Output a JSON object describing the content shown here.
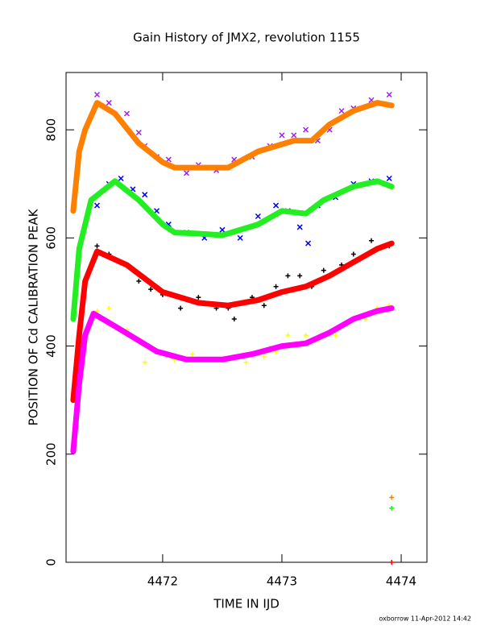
{
  "chart_data": {
    "type": "line",
    "title": "Gain History of JMX2, revolution 1155",
    "xlabel": "TIME IN IJD",
    "ylabel": "POSITION OF Cd CALIBRATION PEAK",
    "footer": "oxborrow 11-Apr-2012 14:42",
    "xlim": [
      4471.19,
      4474.216
    ],
    "ylim": [
      0,
      906
    ],
    "xticks": [
      4472,
      4473,
      4474
    ],
    "yticks": [
      0,
      200,
      400,
      600,
      800
    ],
    "series": [
      {
        "color": "#a020f0",
        "marker": "x",
        "x": [
          4471.45,
          4471.55,
          4471.7,
          4471.8,
          4471.85,
          4471.95,
          4472.05,
          4472.2,
          4472.3,
          4472.45,
          4472.6,
          4472.75,
          4472.9,
          4473.0,
          4473.1,
          4473.2,
          4473.3,
          4473.4,
          4473.5,
          4473.6,
          4473.75,
          4473.9
        ],
        "values": [
          865,
          850,
          830,
          795,
          770,
          750,
          745,
          720,
          735,
          725,
          745,
          750,
          770,
          790,
          790,
          800,
          780,
          800,
          835,
          840,
          855,
          865
        ]
      },
      {
        "color": "#0000ff",
        "marker": "x",
        "x": [
          4471.45,
          4471.55,
          4471.65,
          4471.75,
          4471.85,
          4471.95,
          4472.05,
          4472.2,
          4472.35,
          4472.5,
          4472.65,
          4472.8,
          4472.95,
          4473.05,
          4473.15,
          4473.22,
          4473.3,
          4473.45,
          4473.6,
          4473.75,
          4473.9
        ],
        "values": [
          660,
          700,
          710,
          690,
          680,
          650,
          625,
          610,
          600,
          615,
          600,
          640,
          660,
          650,
          620,
          590,
          660,
          675,
          700,
          705,
          710
        ]
      },
      {
        "color": "#000000",
        "marker": "+",
        "x": [
          4471.45,
          4471.55,
          4471.7,
          4471.8,
          4471.9,
          4472.0,
          4472.15,
          4472.3,
          4472.45,
          4472.55,
          4472.6,
          4472.75,
          4472.85,
          4472.95,
          4473.05,
          4473.15,
          4473.25,
          4473.35,
          4473.5,
          4473.6,
          4473.75,
          4473.9
        ],
        "values": [
          585,
          570,
          550,
          520,
          505,
          495,
          470,
          490,
          470,
          470,
          450,
          490,
          475,
          510,
          530,
          530,
          510,
          540,
          550,
          570,
          595,
          585
        ]
      },
      {
        "color": "#ffff00",
        "marker": "+",
        "x": [
          4471.45,
          4471.55,
          4471.7,
          4471.85,
          4471.95,
          4472.1,
          4472.25,
          4472.45,
          4472.6,
          4472.7,
          4472.85,
          4472.95,
          4473.05,
          4473.2,
          4473.3,
          4473.45,
          4473.55,
          4473.7,
          4473.8,
          4473.9
        ],
        "values": [
          465,
          470,
          430,
          370,
          390,
          375,
          385,
          375,
          380,
          370,
          380,
          390,
          420,
          420,
          410,
          420,
          440,
          450,
          470,
          475
        ]
      },
      {
        "color": "#ff8000",
        "marker": "line",
        "x": [
          4471.25,
          4471.3,
          4471.35,
          4471.45,
          4471.6,
          4471.8,
          4472.0,
          4472.1,
          4472.3,
          4472.55,
          4472.8,
          4473.1,
          4473.25,
          4473.4,
          4473.6,
          4473.8,
          4473.92
        ],
        "values": [
          650,
          760,
          800,
          850,
          830,
          775,
          740,
          730,
          730,
          730,
          760,
          780,
          780,
          810,
          835,
          850,
          845
        ]
      },
      {
        "color": "#22ee22",
        "marker": "line",
        "x": [
          4471.25,
          4471.3,
          4471.4,
          4471.6,
          4471.8,
          4472.0,
          4472.1,
          4472.3,
          4472.5,
          4472.8,
          4473.0,
          4473.2,
          4473.35,
          4473.6,
          4473.8,
          4473.92
        ],
        "values": [
          450,
          580,
          670,
          705,
          670,
          625,
          610,
          608,
          605,
          625,
          650,
          645,
          670,
          695,
          705,
          695
        ]
      },
      {
        "color": "#ff0000",
        "marker": "line",
        "x": [
          4471.25,
          4471.3,
          4471.35,
          4471.45,
          4471.7,
          4472.0,
          4472.3,
          4472.55,
          4472.8,
          4473.0,
          4473.2,
          4473.4,
          4473.6,
          4473.8,
          4473.92
        ],
        "values": [
          300,
          420,
          520,
          575,
          550,
          500,
          480,
          475,
          485,
          500,
          510,
          530,
          555,
          580,
          590
        ]
      },
      {
        "color": "#ff00ff",
        "marker": "line",
        "x": [
          4471.25,
          4471.3,
          4471.35,
          4471.42,
          4471.65,
          4471.95,
          4472.2,
          4472.5,
          4472.75,
          4473.0,
          4473.2,
          4473.4,
          4473.6,
          4473.8,
          4473.92
        ],
        "values": [
          205,
          330,
          420,
          460,
          430,
          390,
          375,
          375,
          385,
          400,
          405,
          425,
          450,
          465,
          470
        ]
      },
      {
        "color": "#ff8000",
        "marker": "+",
        "x": [
          4473.92
        ],
        "values": [
          120
        ]
      },
      {
        "color": "#22ee22",
        "marker": "+",
        "x": [
          4473.92
        ],
        "values": [
          100
        ]
      },
      {
        "color": "#ff0000",
        "marker": "+",
        "x": [
          4473.92
        ],
        "values": [
          0
        ]
      }
    ]
  }
}
